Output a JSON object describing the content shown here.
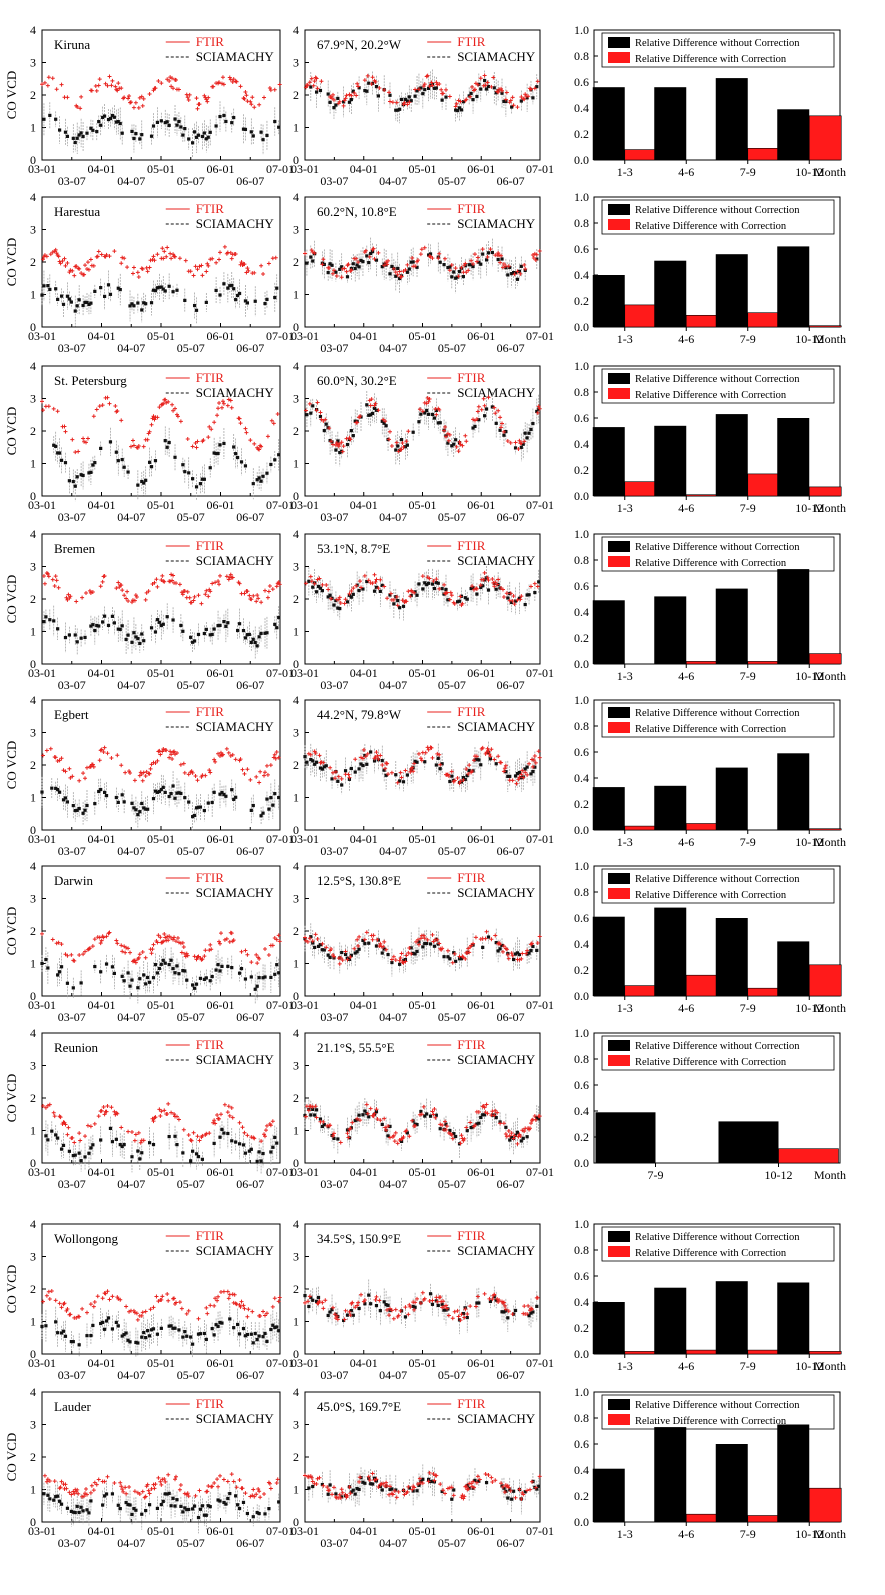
{
  "figure": {
    "y_label": "CO VCD",
    "ts_x_ticks": [
      "03-01",
      "04-01",
      "05-01",
      "06-01",
      "07-01"
    ],
    "ts_x_subticks": [
      "03-07",
      "04-07",
      "05-07",
      "06-07"
    ],
    "ts_y_ticks": [
      "0",
      "1",
      "2",
      "3",
      "4"
    ],
    "bar_y_ticks": [
      "0.0",
      "0.2",
      "0.4",
      "0.6",
      "0.8",
      "1.0"
    ],
    "ftir_legend": "FTIR",
    "sciamachy_legend": "SCIAMACHY",
    "bar_legend_without": "Relative Difference without Correction",
    "bar_legend_with": "Relative Difference with Correction",
    "month_label": "Month",
    "colors": {
      "ftir": "#e8231f",
      "sciamachy": "#111111",
      "bar_without": "#000000",
      "bar_with": "#ff1a1a"
    }
  },
  "chart_data": [
    {
      "type": "bar",
      "station": "Kiruna",
      "coords": "67.9°N, 20.2°W",
      "categories": [
        "1-3",
        "4-6",
        "7-9",
        "10-12"
      ],
      "series": [
        {
          "name": "Relative Difference without Correction",
          "values": [
            0.56,
            0.56,
            0.63,
            0.39
          ]
        },
        {
          "name": "Relative Difference with Correction",
          "values": [
            0.08,
            0.0,
            0.09,
            0.34
          ]
        }
      ],
      "ylim": [
        0,
        1
      ]
    },
    {
      "type": "bar",
      "station": "Harestua",
      "coords": "60.2°N, 10.8°E",
      "categories": [
        "1-3",
        "4-6",
        "7-9",
        "10-12"
      ],
      "series": [
        {
          "name": "Relative Difference without Correction",
          "values": [
            0.4,
            0.51,
            0.56,
            0.62
          ]
        },
        {
          "name": "Relative Difference with Correction",
          "values": [
            0.17,
            0.09,
            0.11,
            0.01
          ]
        }
      ],
      "ylim": [
        0,
        1
      ]
    },
    {
      "type": "bar",
      "station": "St. Petersburg",
      "coords": "60.0°N, 30.2°E",
      "categories": [
        "1-3",
        "4-6",
        "7-9",
        "10-12"
      ],
      "series": [
        {
          "name": "Relative Difference without Correction",
          "values": [
            0.53,
            0.54,
            0.63,
            0.6
          ]
        },
        {
          "name": "Relative Difference with Correction",
          "values": [
            0.11,
            0.01,
            0.17,
            0.07
          ]
        }
      ],
      "ylim": [
        0,
        1
      ]
    },
    {
      "type": "bar",
      "station": "Bremen",
      "coords": "53.1°N, 8.7°E",
      "categories": [
        "1-3",
        "4-6",
        "7-9",
        "10-12"
      ],
      "series": [
        {
          "name": "Relative Difference without Correction",
          "values": [
            0.49,
            0.52,
            0.58,
            0.73
          ]
        },
        {
          "name": "Relative Difference with Correction",
          "values": [
            0.0,
            0.02,
            0.02,
            0.08
          ]
        }
      ],
      "ylim": [
        0,
        1
      ]
    },
    {
      "type": "bar",
      "station": "Egbert",
      "coords": "44.2°N, 79.8°W",
      "categories": [
        "1-3",
        "4-6",
        "7-9",
        "10-12"
      ],
      "series": [
        {
          "name": "Relative Difference without Correction",
          "values": [
            0.33,
            0.34,
            0.48,
            0.59
          ]
        },
        {
          "name": "Relative Difference with Correction",
          "values": [
            0.03,
            0.05,
            0.0,
            0.01
          ]
        }
      ],
      "ylim": [
        0,
        1
      ]
    },
    {
      "type": "bar",
      "station": "Darwin",
      "coords": "12.5°S, 130.8°E",
      "categories": [
        "1-3",
        "4-6",
        "7-9",
        "10-12"
      ],
      "series": [
        {
          "name": "Relative Difference without Correction",
          "values": [
            0.61,
            0.68,
            0.6,
            0.42
          ]
        },
        {
          "name": "Relative Difference with Correction",
          "values": [
            0.08,
            0.16,
            0.06,
            0.24
          ]
        }
      ],
      "ylim": [
        0,
        1
      ]
    },
    {
      "type": "bar",
      "station": "Reunion",
      "coords": "21.1°S, 55.5°E",
      "categories": [
        "7-9",
        "10-12"
      ],
      "series": [
        {
          "name": "Relative Difference without Correction",
          "values": [
            0.39,
            0.32
          ]
        },
        {
          "name": "Relative Difference with Correction",
          "values": [
            0.0,
            0.11
          ]
        }
      ],
      "ylim": [
        0,
        1
      ]
    },
    {
      "type": "bar",
      "station": "Wollongong",
      "coords": "34.5°S, 150.9°E",
      "categories": [
        "1-3",
        "4-6",
        "7-9",
        "10-12"
      ],
      "series": [
        {
          "name": "Relative Difference without Correction",
          "values": [
            0.4,
            0.51,
            0.56,
            0.55
          ]
        },
        {
          "name": "Relative Difference with Correction",
          "values": [
            0.02,
            0.03,
            0.03,
            0.02
          ]
        }
      ],
      "ylim": [
        0,
        1
      ]
    },
    {
      "type": "bar",
      "station": "Lauder",
      "coords": "45.0°S, 169.7°E",
      "categories": [
        "1-3",
        "4-6",
        "7-9",
        "10-12"
      ],
      "series": [
        {
          "name": "Relative Difference without Correction",
          "values": [
            0.41,
            0.73,
            0.6,
            0.75
          ]
        },
        {
          "name": "Relative Difference with Correction",
          "values": [
            0.0,
            0.06,
            0.05,
            0.26
          ]
        }
      ],
      "ylim": [
        0,
        1
      ]
    }
  ]
}
